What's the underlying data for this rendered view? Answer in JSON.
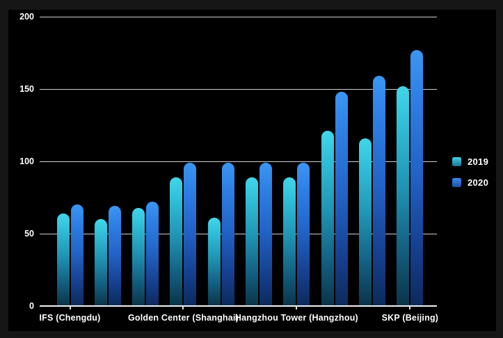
{
  "chart_data": {
    "type": "bar",
    "title": "",
    "categories_count": 10,
    "x_tick_labels": [
      {
        "index": 0,
        "label": "IFS (Chengdu)"
      },
      {
        "index": 3,
        "label": "Golden Center (Shanghai)"
      },
      {
        "index": 6,
        "label": "Hangzhou Tower (Hangzhou)"
      },
      {
        "index": 9,
        "label": "SKP (Beijing)"
      }
    ],
    "series": [
      {
        "name": "2019",
        "color": "#35c9de",
        "values": [
          64,
          60,
          68,
          89,
          61,
          89,
          89,
          121,
          116,
          152
        ]
      },
      {
        "name": "2020",
        "color": "#2e82e8",
        "values": [
          70,
          69,
          72,
          99,
          99,
          99,
          99,
          148,
          159,
          177
        ]
      }
    ],
    "y_ticks": [
      0,
      50,
      100,
      150,
      200
    ],
    "ylim": [
      0,
      200
    ],
    "grid": true,
    "legend_position": "right",
    "colors": {
      "background": "#000000",
      "frame": "#161616",
      "gridline": "#cccccc",
      "axis_line": "#f2f2f2",
      "text": "#ffffff",
      "series_2019": "#35c9de",
      "series_2020": "#2e82e8"
    }
  }
}
